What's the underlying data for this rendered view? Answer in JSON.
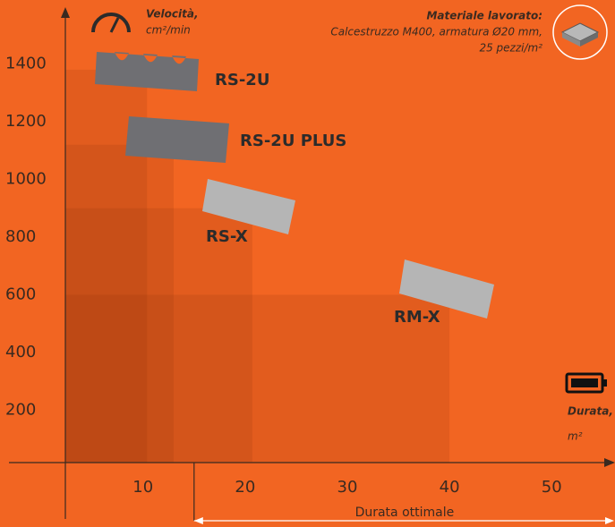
{
  "chart_data": {
    "type": "nested-rect",
    "labels": [
      "RS-2U",
      "RS-2U PLUS",
      "RS-X",
      "RM-X"
    ],
    "x": [
      10.4,
      13,
      20.7,
      40
    ],
    "values": [
      1380,
      1120,
      900,
      600
    ],
    "color": "#7a2a05",
    "xlim": [
      2.4,
      56.2
    ],
    "ylim": [
      0,
      1575
    ],
    "xticks": [
      10,
      20,
      30,
      40,
      50
    ],
    "yticks": [
      200,
      400,
      600,
      800,
      1000,
      1200,
      1400
    ],
    "y_label": "Velocità,",
    "y_unit": "cm²/min",
    "x_label": "Durata,",
    "x_unit": "m²",
    "material_title": "Materiale lavorato:",
    "material_lines": [
      "Calcestruzzo M400, armatura Ø20 mm,",
      "25 pezzi/m²"
    ],
    "optimal_range": {
      "label": "Durata ottimale",
      "start": 15
    }
  }
}
